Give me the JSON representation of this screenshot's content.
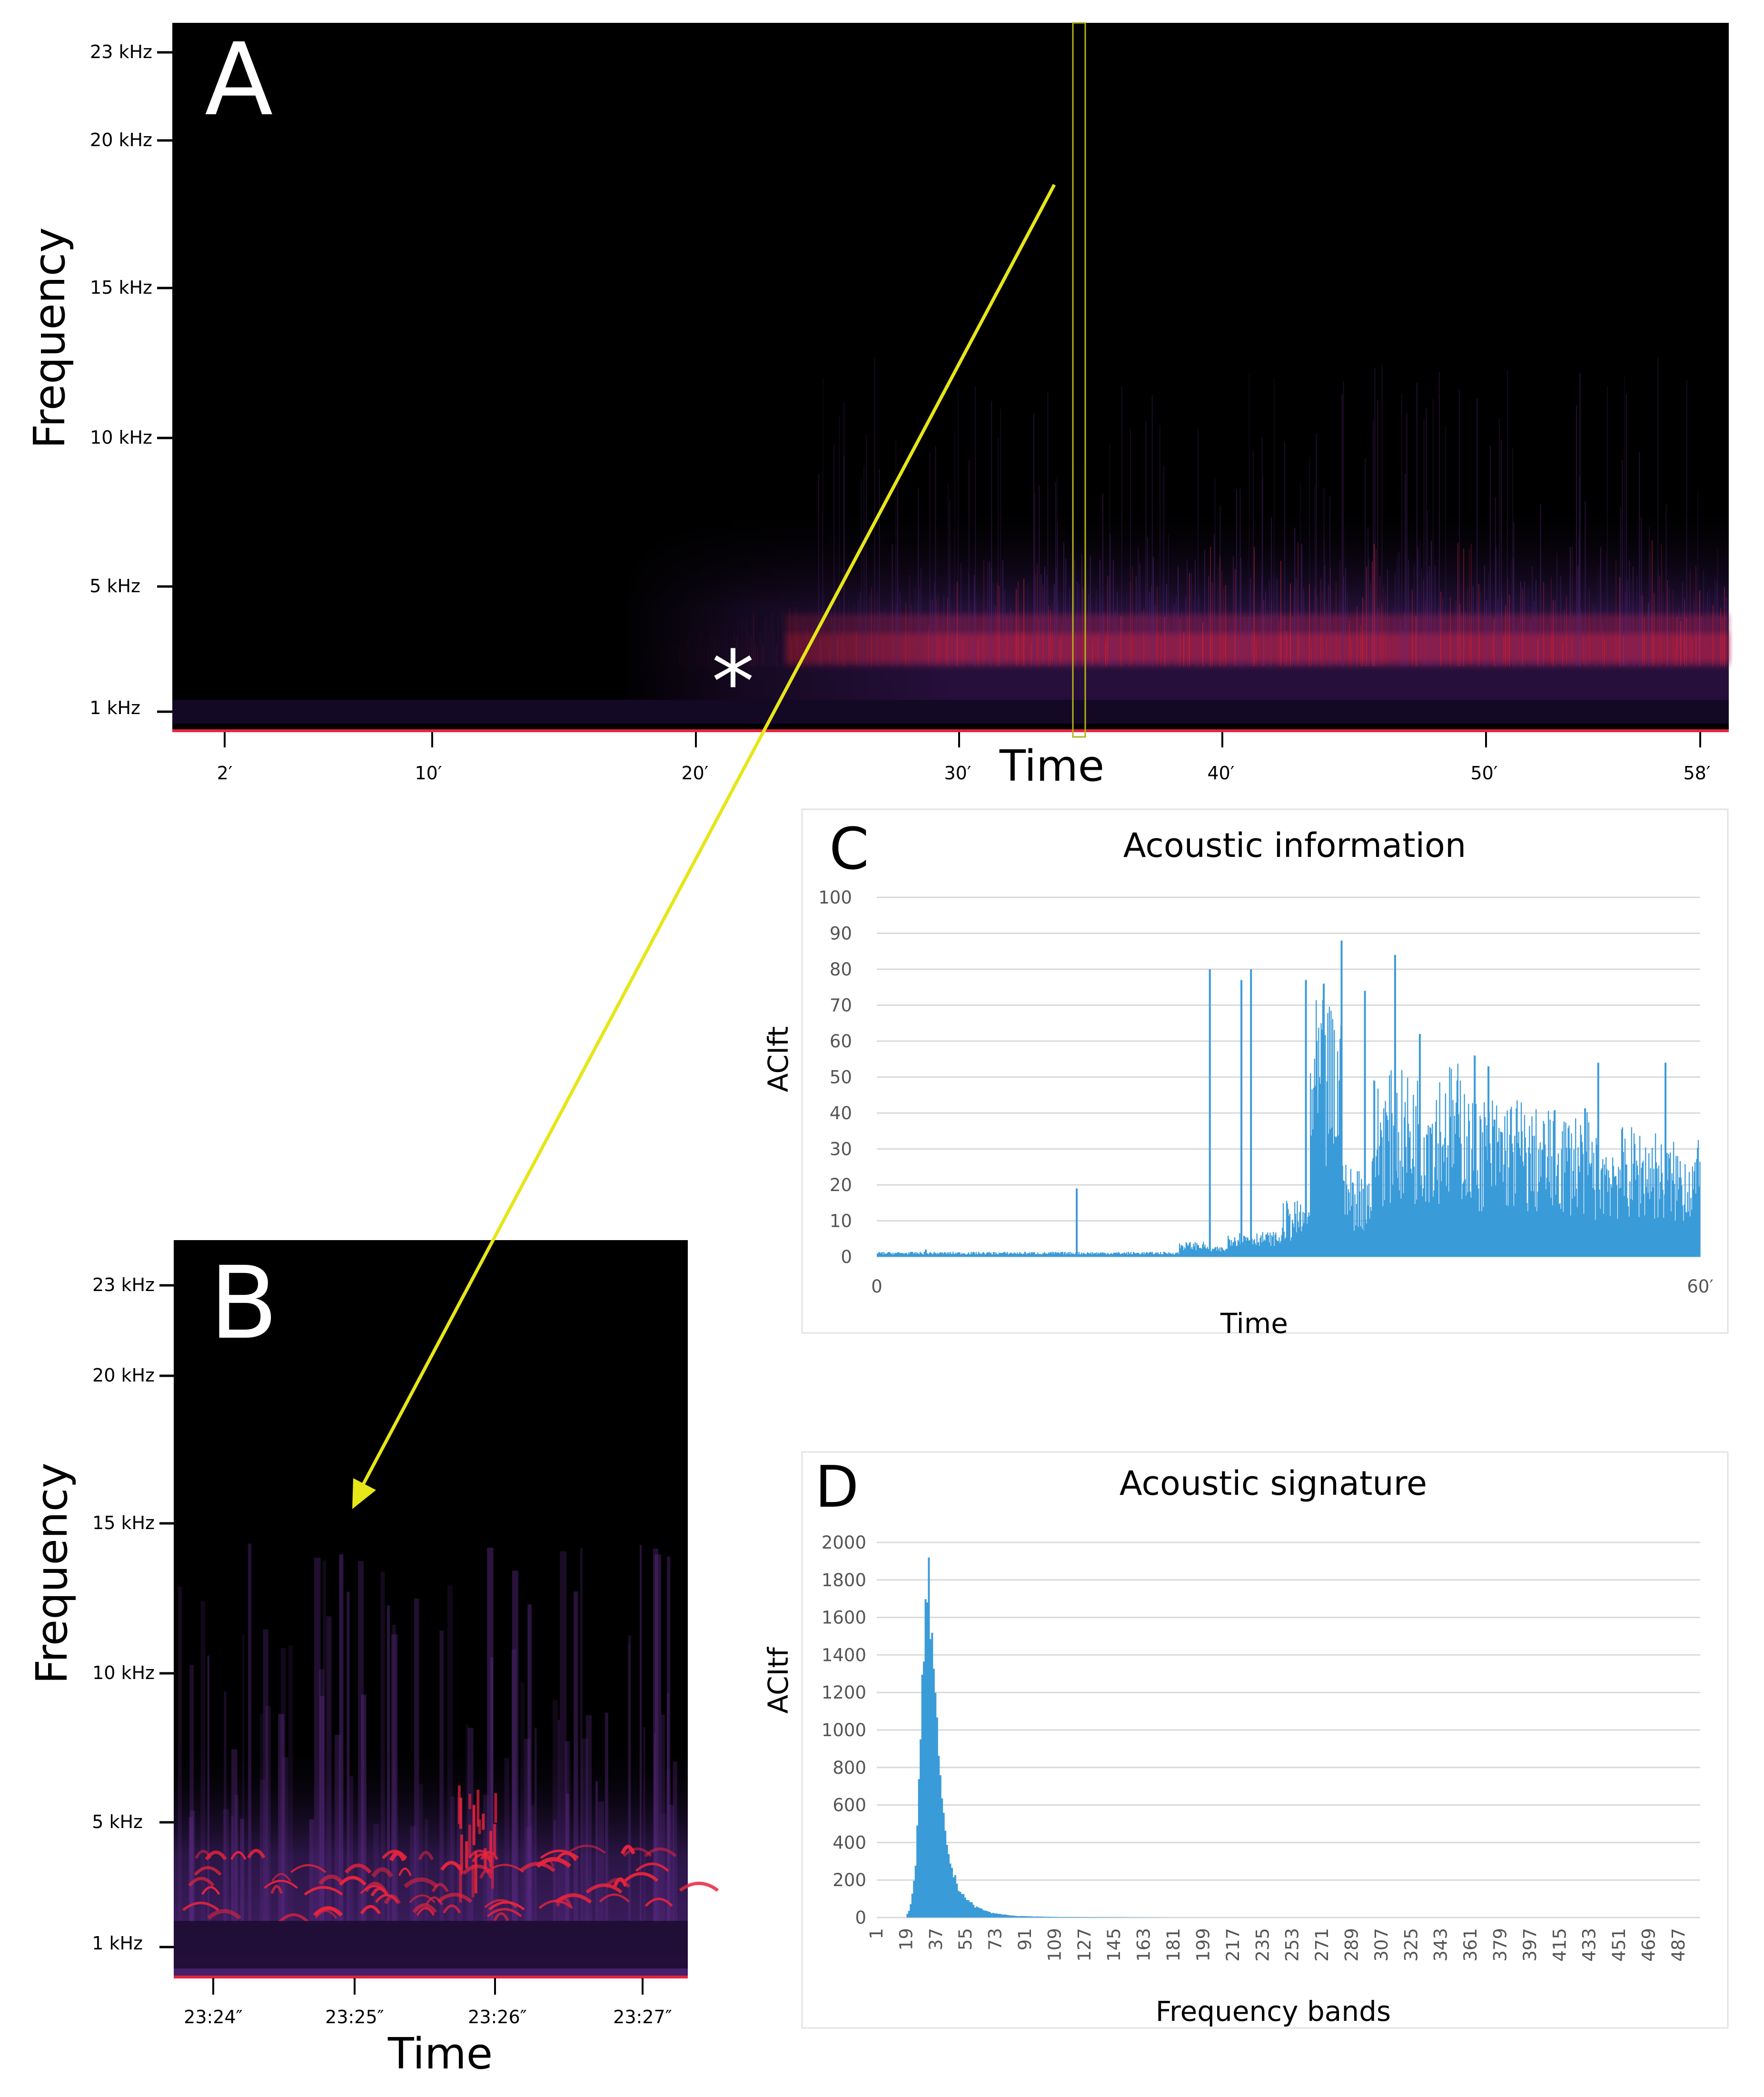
{
  "panels": {
    "A": {
      "letter": "A",
      "ylabel": "Frequency",
      "xlabel": "Time",
      "freq_ticks": [
        "23 kHz",
        "20 kHz",
        "15 kHz",
        "10 kHz",
        "5 kHz",
        "1 kHz"
      ],
      "time_ticks": [
        "2′",
        "10′",
        "20′",
        "30′",
        "40′",
        "50′",
        "58′"
      ],
      "marker": "*"
    },
    "B": {
      "letter": "B",
      "ylabel": "Frequency",
      "xlabel": "Time",
      "freq_ticks": [
        "23 kHz",
        "20 kHz",
        "15 kHz",
        "10 kHz",
        "5 kHz",
        "1 kHz"
      ],
      "time_ticks": [
        "23:24″",
        "23:25″",
        "23:26″",
        "23:27″"
      ]
    }
  },
  "colors": {
    "spectrogram_bg": "#000000",
    "energy": "#e8243c",
    "haze": "#5a2a82",
    "arrow": "#e6e619",
    "bar": "#3a9bd9",
    "grid": "#d9d9d9"
  },
  "chart_data": [
    {
      "letter": "C",
      "type": "bar",
      "title": "Acoustic information",
      "xlabel": "Time",
      "ylabel": "ACIft",
      "ylim": [
        0,
        100
      ],
      "yticks": [
        0,
        10,
        20,
        30,
        40,
        50,
        60,
        70,
        80,
        90,
        100
      ],
      "xtick_labels": [
        "0",
        "60′"
      ],
      "segments": [
        {
          "start": 0,
          "end": 22,
          "level": 1
        },
        {
          "start": 22,
          "end": 24,
          "level": 3
        },
        {
          "start": 24,
          "end": 25.5,
          "level": 2
        },
        {
          "start": 25.5,
          "end": 29.5,
          "level": 5
        },
        {
          "start": 29.5,
          "end": 31.5,
          "level": 12
        },
        {
          "start": 31.5,
          "end": 34,
          "level": 55
        },
        {
          "start": 34,
          "end": 36,
          "level": 20
        },
        {
          "start": 36,
          "end": 40,
          "level": 40
        },
        {
          "start": 40,
          "end": 43,
          "level": 42
        },
        {
          "start": 43,
          "end": 47,
          "level": 35
        },
        {
          "start": 47,
          "end": 52,
          "level": 32
        },
        {
          "start": 52,
          "end": 57,
          "level": 28
        },
        {
          "start": 57,
          "end": 60,
          "level": 25
        }
      ],
      "spikes": [
        {
          "x": 3.5,
          "y": 2
        },
        {
          "x": 14.5,
          "y": 19
        },
        {
          "x": 24.2,
          "y": 80
        },
        {
          "x": 26.5,
          "y": 77
        },
        {
          "x": 27.2,
          "y": 80
        },
        {
          "x": 31.2,
          "y": 77
        },
        {
          "x": 32.5,
          "y": 76
        },
        {
          "x": 33.8,
          "y": 88
        },
        {
          "x": 35.5,
          "y": 74
        },
        {
          "x": 37.7,
          "y": 84
        },
        {
          "x": 39.5,
          "y": 62
        },
        {
          "x": 43.5,
          "y": 56
        },
        {
          "x": 44.5,
          "y": 53
        },
        {
          "x": 52.5,
          "y": 54
        },
        {
          "x": 57.4,
          "y": 54
        }
      ]
    },
    {
      "letter": "D",
      "type": "bar",
      "title": "Acoustic signature",
      "xlabel": "Frequency bands",
      "ylabel": "ACItf",
      "ylim": [
        0,
        2000
      ],
      "yticks": [
        0,
        200,
        400,
        600,
        800,
        1000,
        1200,
        1400,
        1600,
        1800,
        2000
      ],
      "x_range": [
        1,
        500
      ],
      "xtick_labels": [
        "1",
        "19",
        "37",
        "55",
        "73",
        "91",
        "109",
        "127",
        "145",
        "163",
        "181",
        "199",
        "217",
        "235",
        "253",
        "271",
        "289",
        "307",
        "325",
        "343",
        "361",
        "379",
        "397",
        "415",
        "433",
        "451",
        "469",
        "487"
      ],
      "profile": [
        {
          "band": 18,
          "value": 0
        },
        {
          "band": 20,
          "value": 40
        },
        {
          "band": 22,
          "value": 120
        },
        {
          "band": 24,
          "value": 300
        },
        {
          "band": 26,
          "value": 700
        },
        {
          "band": 28,
          "value": 1200
        },
        {
          "band": 30,
          "value": 1650
        },
        {
          "band": 31,
          "value": 1820
        },
        {
          "band": 32,
          "value": 1780
        },
        {
          "band": 34,
          "value": 1500
        },
        {
          "band": 36,
          "value": 1150
        },
        {
          "band": 38,
          "value": 850
        },
        {
          "band": 40,
          "value": 600
        },
        {
          "band": 43,
          "value": 400
        },
        {
          "band": 46,
          "value": 260
        },
        {
          "band": 50,
          "value": 160
        },
        {
          "band": 55,
          "value": 100
        },
        {
          "band": 60,
          "value": 60
        },
        {
          "band": 70,
          "value": 25
        },
        {
          "band": 85,
          "value": 8
        },
        {
          "band": 110,
          "value": 3
        },
        {
          "band": 180,
          "value": 0
        }
      ]
    }
  ]
}
